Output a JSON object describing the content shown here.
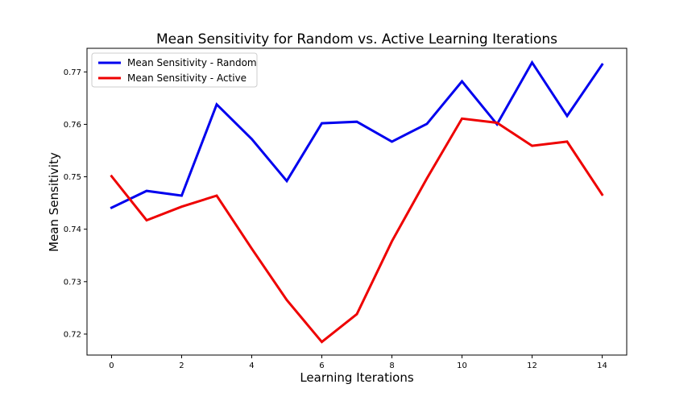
{
  "chart_data": {
    "type": "line",
    "title": "Mean Sensitivity for Random vs. Active Learning Iterations",
    "xlabel": "Learning Iterations",
    "ylabel": "Mean Sensitivity",
    "xlim": [
      -0.7,
      14.7
    ],
    "ylim": [
      0.716,
      0.7745
    ],
    "xticks": [
      0,
      2,
      4,
      6,
      8,
      10,
      12,
      14
    ],
    "yticks": [
      0.72,
      0.73,
      0.74,
      0.75,
      0.76,
      0.77
    ],
    "grid": false,
    "legend_position": "top-left",
    "x": [
      0,
      1,
      2,
      3,
      4,
      5,
      6,
      7,
      8,
      9,
      10,
      11,
      12,
      13,
      14
    ],
    "series": [
      {
        "name": "Mean Sensitivity - Random",
        "color": "#0000ee",
        "values": [
          0.7441,
          0.7473,
          0.7464,
          0.7638,
          0.7572,
          0.7492,
          0.7602,
          0.7605,
          0.7567,
          0.7601,
          0.7682,
          0.76,
          0.7718,
          0.7616,
          0.7714
        ]
      },
      {
        "name": "Mean Sensitivity - Active",
        "color": "#ee0000",
        "values": [
          0.7501,
          0.7417,
          0.7443,
          0.7464,
          0.7363,
          0.7265,
          0.7185,
          0.7238,
          0.7377,
          0.7497,
          0.7611,
          0.7603,
          0.7559,
          0.7567,
          0.7466
        ]
      }
    ]
  }
}
